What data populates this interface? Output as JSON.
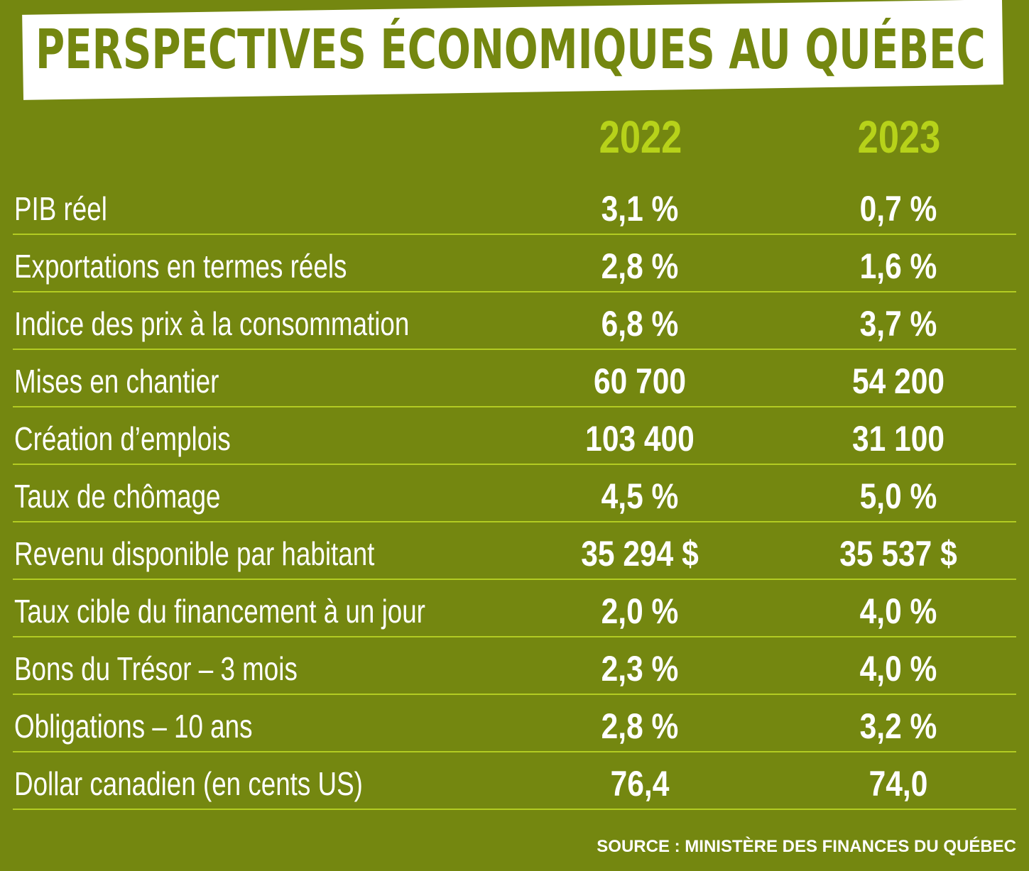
{
  "title": "PERSPECTIVES ÉCONOMIQUES AU QUÉBEC",
  "source": "SOURCE : MINISTÈRE DES FINANCES DU QUÉBEC",
  "colors": {
    "background": "#748710",
    "title_banner": "#ffffff",
    "title_text": "#748710",
    "year_header": "#b7d21a",
    "values": "#ffffff",
    "divider": "#b3cc22"
  },
  "chart_data": {
    "type": "table",
    "title": "PERSPECTIVES ÉCONOMIQUES AU QUÉBEC",
    "columns": [
      "2022",
      "2023"
    ],
    "rows": [
      {
        "label": "PIB réel",
        "values": [
          "3,1 %",
          "0,7 %"
        ]
      },
      {
        "label": "Exportations en termes réels",
        "values": [
          "2,8 %",
          "1,6 %"
        ]
      },
      {
        "label": "Indice des prix à la consommation",
        "values": [
          "6,8 %",
          "3,7 %"
        ]
      },
      {
        "label": "Mises en chantier",
        "values": [
          "60 700",
          "54 200"
        ]
      },
      {
        "label": "Création d’emplois",
        "values": [
          "103 400",
          "31 100"
        ]
      },
      {
        "label": "Taux de chômage",
        "values": [
          "4,5 %",
          "5,0 %"
        ]
      },
      {
        "label": "Revenu disponible par habitant",
        "values": [
          "35 294 $",
          "35 537 $"
        ]
      },
      {
        "label": "Taux cible du financement à un jour",
        "values": [
          "2,0 %",
          "4,0 %"
        ]
      },
      {
        "label": "Bons du Trésor – 3 mois",
        "values": [
          "2,3 %",
          "4,0 %"
        ]
      },
      {
        "label": "Obligations – 10 ans",
        "values": [
          "2,8 %",
          "3,2 %"
        ]
      },
      {
        "label": "Dollar canadien (en cents US)",
        "values": [
          "76,4",
          "74,0"
        ]
      }
    ]
  }
}
